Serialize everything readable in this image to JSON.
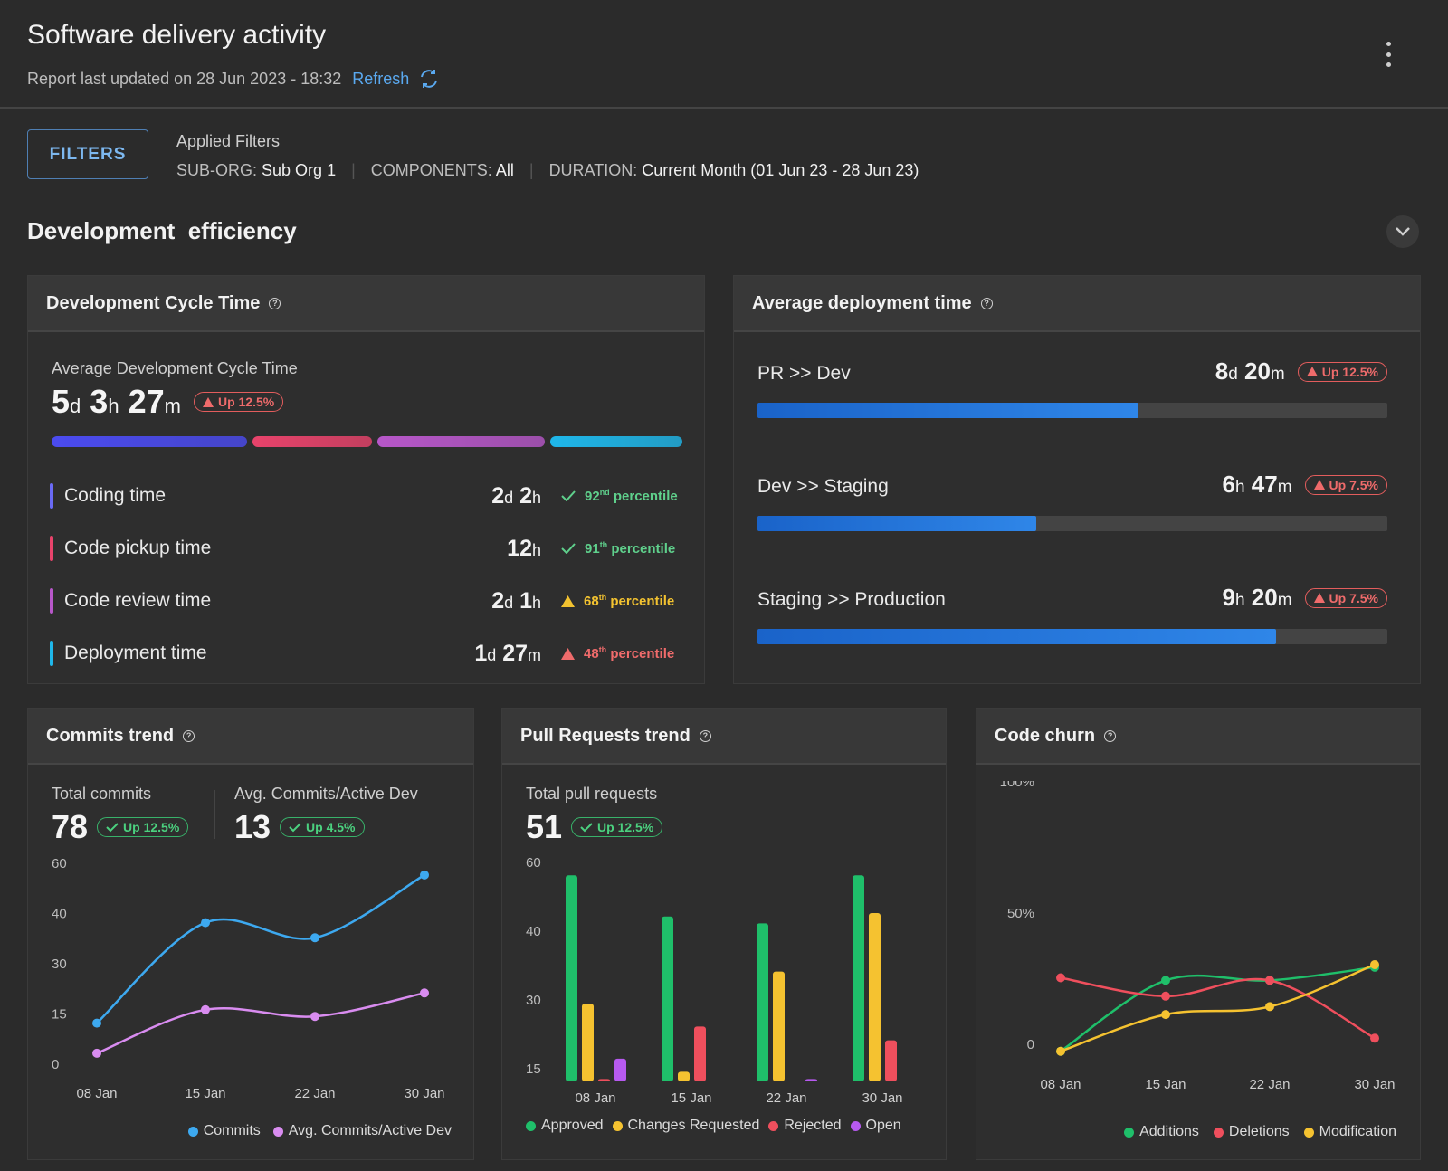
{
  "header": {
    "title": "Software delivery activity",
    "updated": "Report last updated on 28 Jun 2023 - 18:32",
    "refresh": "Refresh"
  },
  "filters": {
    "button": "FILTERS",
    "applied_label": "Applied Filters",
    "items": [
      {
        "key": "SUB-ORG:",
        "value": "Sub Org 1"
      },
      {
        "key": "COMPONENTS:",
        "value": "All"
      },
      {
        "key": "DURATION:",
        "value": "Current Month (01 Jun 23 - 28 Jun 23)"
      }
    ]
  },
  "section": {
    "title": "Development  efficiency"
  },
  "cycle": {
    "title": "Development Cycle Time",
    "avg_label": "Average Development Cycle Time",
    "avg_d": "5",
    "avg_h": "3",
    "avg_m": "27",
    "badge": "Up 12.5%",
    "segment_colors": [
      "#4b4bf0",
      "#e8436b",
      "#b757c9",
      "#1fb7ea"
    ],
    "metrics": [
      {
        "label": "Coding time",
        "color": "#6a6af5",
        "v1": "2",
        "u1": "d",
        "v2": "2",
        "u2": "h",
        "pct": "92",
        "sup": "nd",
        "word": "percentile",
        "status": "good"
      },
      {
        "label": "Code pickup time",
        "color": "#e8436b",
        "v1": "",
        "u1": "",
        "v2": "12",
        "u2": "h",
        "pct": "91",
        "sup": "th",
        "word": "percentile",
        "status": "good"
      },
      {
        "label": "Code review time",
        "color": "#b757c9",
        "v1": "2",
        "u1": "d",
        "v2": "1",
        "u2": "h",
        "pct": "68",
        "sup": "th",
        "word": "percentile",
        "status": "warn"
      },
      {
        "label": "Deployment time",
        "color": "#1fb7ea",
        "v1": "1",
        "u1": "d",
        "v2": "27",
        "u2": "m",
        "pct": "48",
        "sup": "th",
        "word": "percentile",
        "status": "bad"
      }
    ]
  },
  "deploy": {
    "title": "Average deployment time",
    "rows": [
      {
        "label": "PR >> Dev",
        "v1": "8",
        "u1": "d",
        "v2": "20",
        "u2": "m",
        "badge": "Up 12.5%",
        "fraction": 0.605
      },
      {
        "label": "Dev >> Staging",
        "v1": "6",
        "u1": "h",
        "v2": "47",
        "u2": "m",
        "badge": "Up 7.5%",
        "fraction": 0.442
      },
      {
        "label": "Staging >> Production",
        "v1": "9",
        "u1": "h",
        "v2": "20",
        "u2": "m",
        "badge": "Up 7.5%",
        "fraction": 0.823
      }
    ]
  },
  "commits": {
    "title": "Commits trend",
    "total_label": "Total commits",
    "total": "78",
    "total_badge": "Up 12.5%",
    "avg_label": "Avg. Commits/Active Dev",
    "avg": "13",
    "avg_badge": "Up 4.5%"
  },
  "prs": {
    "title": "Pull Requests trend",
    "total_label": "Total pull requests",
    "total": "51",
    "total_badge": "Up 12.5%"
  },
  "churn": {
    "title": "Code churn"
  },
  "chart_data": [
    {
      "type": "line",
      "categories": [
        "08 Jan",
        "15 Jan",
        "22 Jan",
        "30 Jan"
      ],
      "yticks": [
        "0",
        "15",
        "30",
        "40",
        "60"
      ],
      "series": [
        {
          "name": "Commits",
          "color": "#3da9f0",
          "values": [
            12,
            38,
            35,
            55
          ]
        },
        {
          "name": "Avg. Commits/Active Dev",
          "color": "#d98cf0",
          "values": [
            3,
            16,
            14,
            21
          ]
        }
      ]
    },
    {
      "type": "bar",
      "categories": [
        "08 Jan",
        "15 Jan",
        "22 Jan",
        "30 Jan"
      ],
      "yticks": [
        "15",
        "30",
        "40",
        "60"
      ],
      "series": [
        {
          "name": "Approved",
          "color": "#1fbf6a",
          "values": [
            56,
            44,
            42,
            56
          ]
        },
        {
          "name": "Changes Requested",
          "color": "#f5c230",
          "values": [
            29,
            12.5,
            34,
            45
          ]
        },
        {
          "name": "Rejected",
          "color": "#ef4f5d",
          "values": [
            8,
            24,
            6,
            21
          ]
        },
        {
          "name": "Open",
          "color": "#b75af0",
          "values": [
            17,
            6,
            8,
            7
          ]
        }
      ]
    },
    {
      "type": "line",
      "categories": [
        "08 Jan",
        "15 Jan",
        "22 Jan",
        "30 Jan"
      ],
      "yticks": [
        "0",
        "50%",
        "100%"
      ],
      "series": [
        {
          "name": "Additions",
          "color": "#1fbf6a",
          "values": [
            -3,
            24,
            24,
            29
          ]
        },
        {
          "name": "Deletions",
          "color": "#ef4f5d",
          "values": [
            25,
            18,
            24,
            2
          ]
        },
        {
          "name": "Modification",
          "color": "#f5c230",
          "values": [
            -3,
            11,
            14,
            30
          ]
        }
      ]
    }
  ]
}
